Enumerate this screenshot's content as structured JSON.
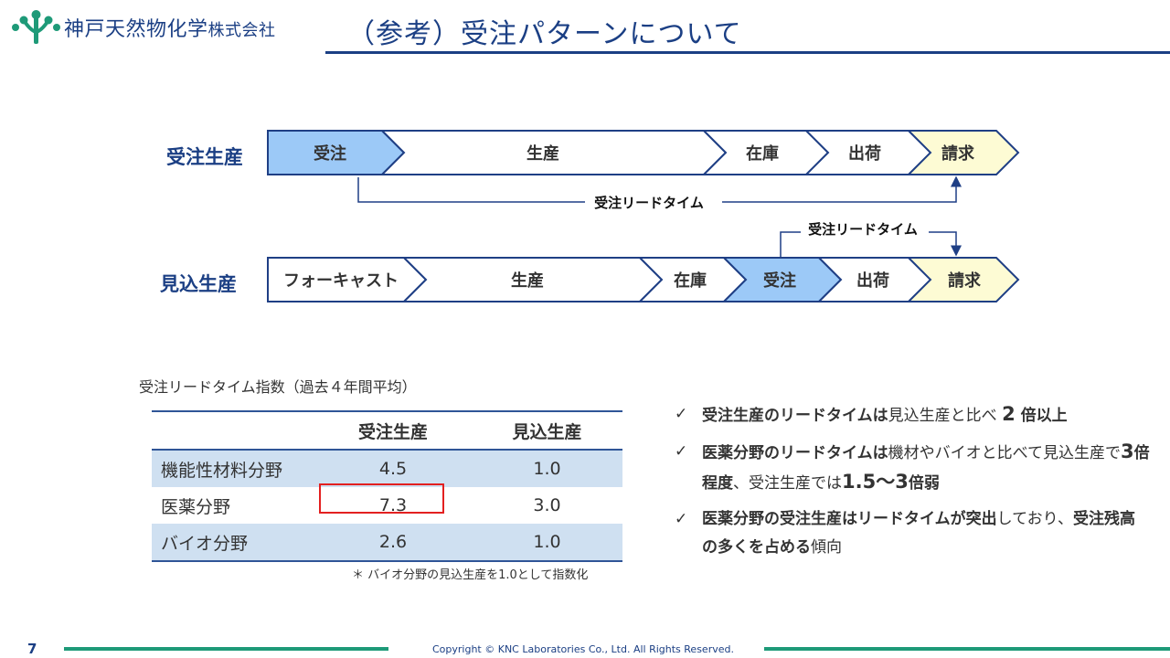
{
  "header": {
    "company_name": "神戸天然物化学",
    "company_suffix": "株式会社",
    "title": "（参考）受注パターンについて",
    "colors": {
      "navy": "#1b3f84",
      "green": "#1e9a78"
    }
  },
  "flow": {
    "make_to_order": {
      "label": "受注生産",
      "steps": [
        "受注",
        "生産",
        "在庫",
        "出荷",
        "請求"
      ],
      "lead_time_label": "受注リードタイム"
    },
    "make_to_stock": {
      "label": "見込生産",
      "steps": [
        "フォーキャスト",
        "生産",
        "在庫",
        "受注",
        "出荷",
        "請求"
      ],
      "lead_time_label": "受注リードタイム"
    },
    "colors": {
      "order_fill": "#9cc9f7",
      "billing_fill": "#fdfbd4",
      "outline": "#1f3f85"
    }
  },
  "table": {
    "caption": "受注リードタイム指数（過去４年間平均）",
    "headers": [
      "",
      "受注生産",
      "見込生産"
    ],
    "rows": [
      {
        "field": "機能性材料分野",
        "mto": "4.5",
        "mts": "1.0"
      },
      {
        "field": "医薬分野",
        "mto": "7.3",
        "mts": "3.0"
      },
      {
        "field": "バイオ分野",
        "mto": "2.6",
        "mts": "1.0"
      }
    ],
    "highlighted_cell": "医薬分野 / 受注生産",
    "footnote": "＊ バイオ分野の見込生産を1.0として指数化"
  },
  "bullets": [
    {
      "parts": [
        {
          "text": "受注生産のリードタイムは",
          "bold": true
        },
        {
          "text": "見込生産と比べ ",
          "bold": false
        },
        {
          "text": "2",
          "big": true
        },
        {
          "text": " 倍以上",
          "bold": true
        }
      ]
    },
    {
      "parts": [
        {
          "text": "医薬分野のリードタイムは",
          "bold": true
        },
        {
          "text": "機材やバイオと比べて見込生産で",
          "bold": false
        },
        {
          "text": "3",
          "big": true
        },
        {
          "text": "倍程度",
          "bold": true
        },
        {
          "text": "、受注生産では",
          "bold": false
        },
        {
          "text": "1.5〜3",
          "big": true
        },
        {
          "text": "倍弱",
          "bold": true
        }
      ]
    },
    {
      "parts": [
        {
          "text": "医薬分野の受注生産はリードタイムが突出",
          "bold": true
        },
        {
          "text": "しており、",
          "bold": false
        },
        {
          "text": "受注残高の多くを占める",
          "bold": true
        },
        {
          "text": "傾向",
          "bold": false
        }
      ]
    }
  ],
  "footer": {
    "page_number": "7",
    "copyright": "Copyright © KNC Laboratories Co., Ltd. All Rights Reserved."
  }
}
